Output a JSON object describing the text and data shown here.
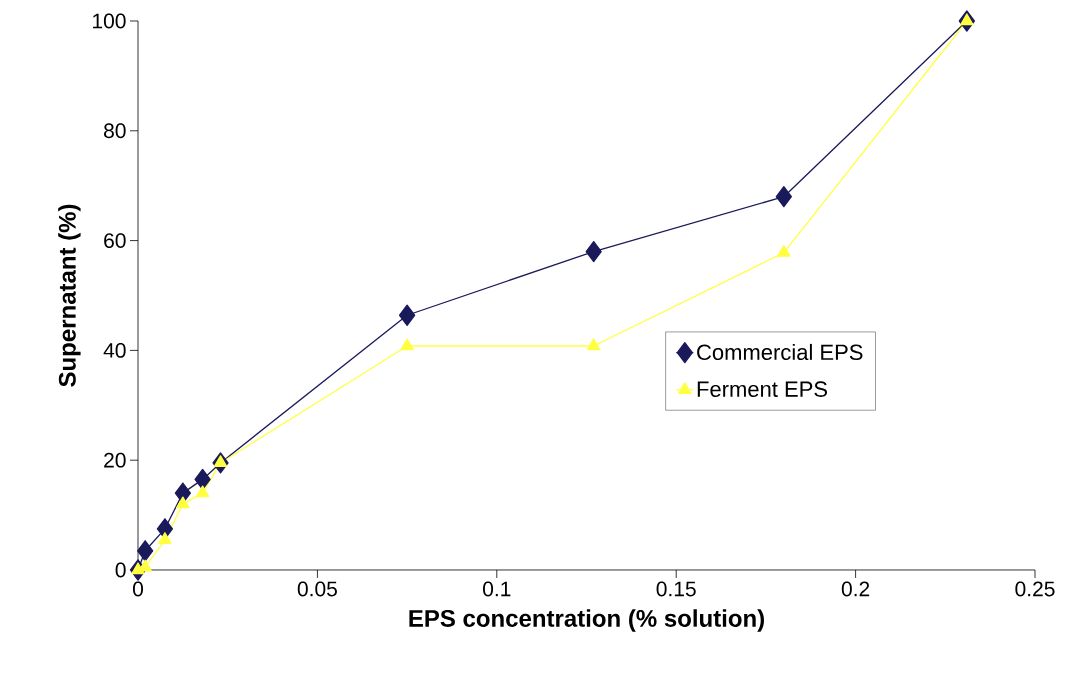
{
  "chart_data": {
    "type": "line",
    "xlabel": "EPS concentration (% solution)",
    "ylabel": "Supernatant (%)",
    "x": [
      0,
      0.002,
      0.0075,
      0.0125,
      0.018,
      0.023,
      0.075,
      0.127,
      0.18,
      0.231
    ],
    "series": [
      {
        "name": "Commercial EPS",
        "color": "#1a1a5a",
        "marker": "diamond",
        "values": [
          0,
          3.5,
          7.5,
          14,
          16.5,
          19.5,
          46.4,
          58,
          68,
          100
        ]
      },
      {
        "name": "Ferment EPS",
        "color": "#ffff40",
        "marker": "triangle",
        "values": [
          0,
          0.5,
          5.5,
          12,
          14,
          19.5,
          40.8,
          40.8,
          57.8,
          100
        ]
      }
    ],
    "xlim": [
      0,
      0.25
    ],
    "ylim": [
      0,
      100
    ],
    "xticks": [
      0,
      0.05,
      0.1,
      0.15,
      0.2,
      0.25
    ],
    "yticks": [
      0,
      20,
      40,
      60,
      80,
      100
    ],
    "grid": false,
    "legend": "right",
    "line_style": "solid"
  }
}
